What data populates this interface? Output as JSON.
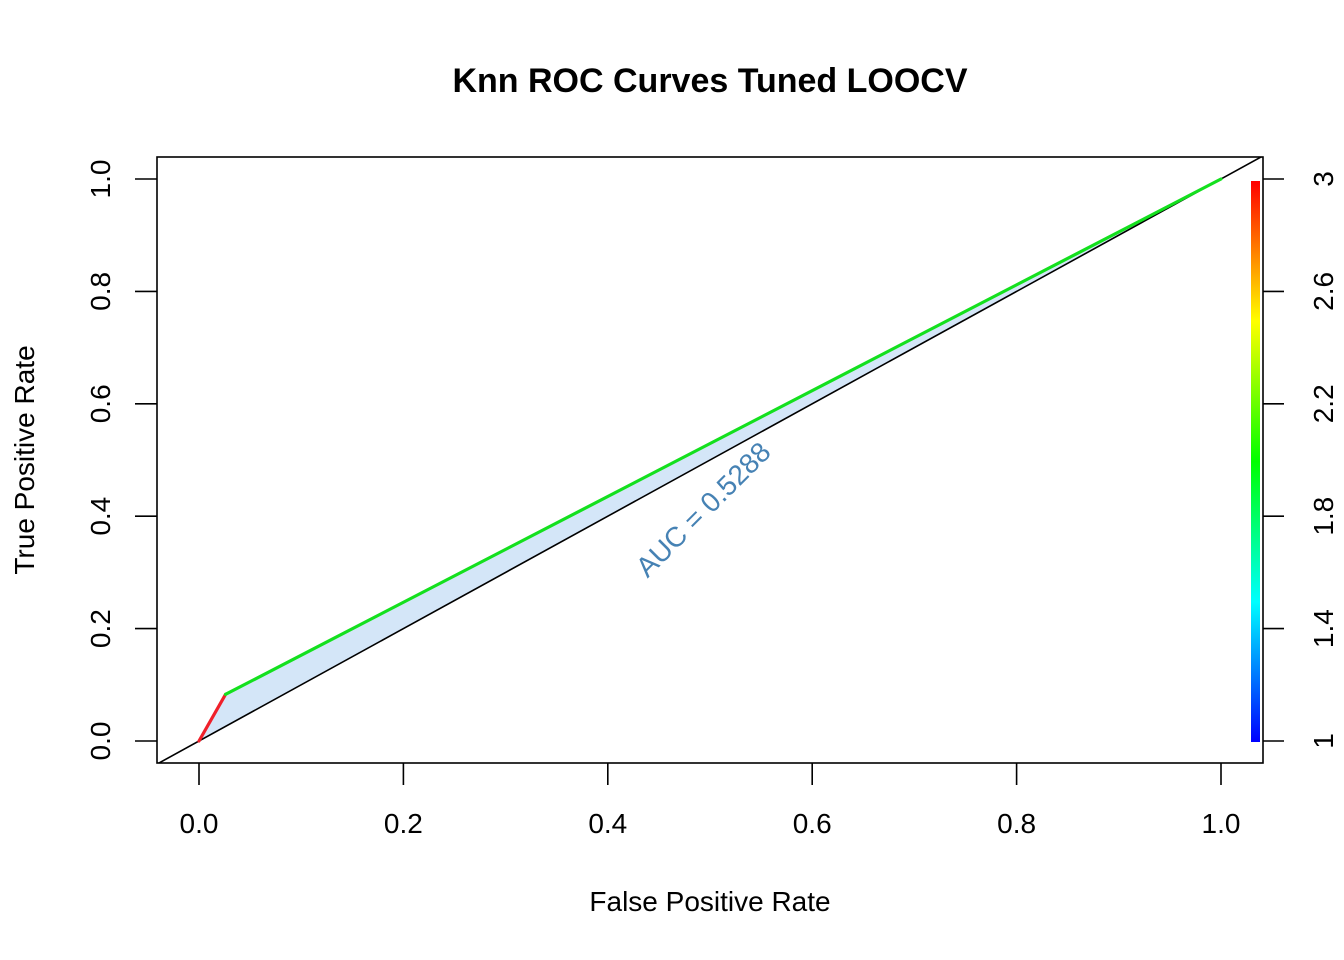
{
  "chart_data": {
    "type": "line",
    "title": "Knn ROC Curves Tuned LOOCV",
    "xlabel": "False Positive Rate",
    "ylabel": "True Positive Rate",
    "xlim": [
      0.0,
      1.0
    ],
    "ylim": [
      0.0,
      1.0
    ],
    "x_ticks": [
      "0.0",
      "0.2",
      "0.4",
      "0.6",
      "0.8",
      "1.0"
    ],
    "y_ticks": [
      "0.0",
      "0.2",
      "0.4",
      "0.6",
      "0.8",
      "1.0"
    ],
    "series": [
      {
        "points": [
          [
            0.0,
            0.0
          ],
          [
            0.026,
            0.083
          ],
          [
            1.0,
            1.0
          ]
        ],
        "cutoffs": [
          3,
          2,
          1
        ]
      }
    ],
    "diagonal": [
      [
        0.0,
        0.0
      ],
      [
        1.0,
        1.0
      ]
    ],
    "auc_label": "AUC = 0.5288",
    "auc": 0.5288,
    "colorbar": {
      "range": [
        1,
        3
      ],
      "ticks": [
        "1",
        "1.4",
        "1.8",
        "2.2",
        "2.6",
        "3"
      ],
      "colors": [
        "#0000ff",
        "#00ffff",
        "#00ff00",
        "#ffff00",
        "#ff0000"
      ]
    },
    "colors": {
      "segment_high": "#f0202a",
      "segment_mid": "#14e01e",
      "auc_fill": "#d4e6f8",
      "auc_text": "#4682b4"
    },
    "grid": false,
    "legend": "colorbar-right"
  }
}
